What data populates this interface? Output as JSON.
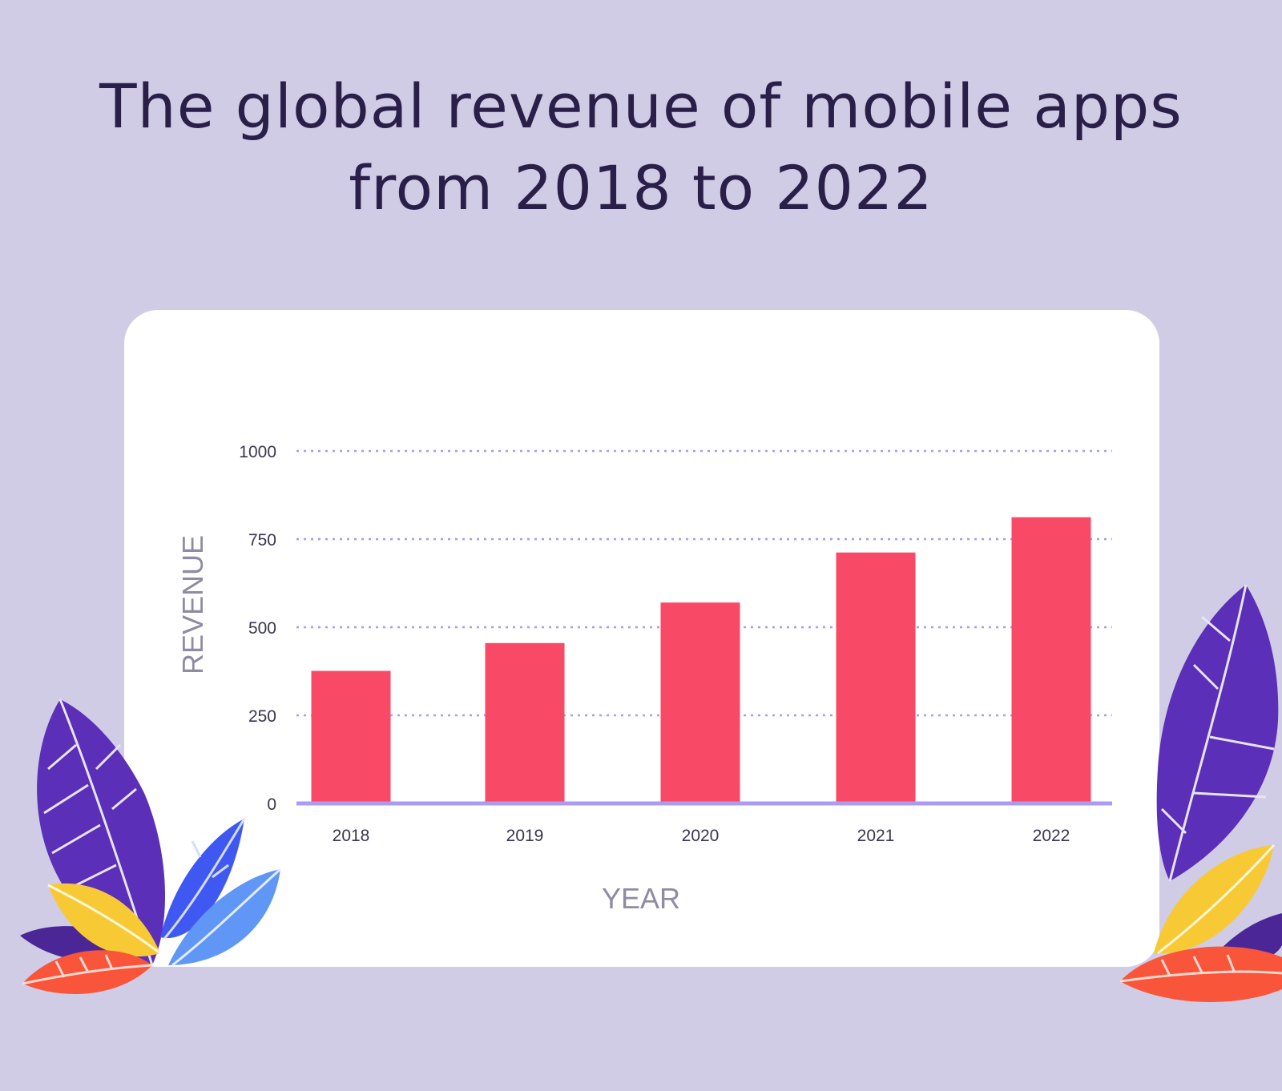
{
  "header": {
    "title_line1": "The global revenue of mobile apps",
    "title_line2": "from 2018 to 2022"
  },
  "colors": {
    "background": "#d0cce6",
    "card": "#ffffff",
    "bar": "#f84a67",
    "grid": "#a99af2",
    "baseline": "#ab9bf2",
    "title": "#2a1f48",
    "axis_title": "#8f8ba3"
  },
  "chart_data": {
    "type": "bar",
    "title": "The global revenue of mobile apps from 2018 to 2022",
    "xlabel": "YEAR",
    "ylabel": "REVENUE",
    "categories": [
      "2018",
      "2019",
      "2020",
      "2021",
      "2022"
    ],
    "values": [
      376,
      455,
      570,
      712,
      812
    ],
    "ylim": [
      0,
      1000
    ],
    "yticks": [
      0,
      250,
      500,
      750,
      1000
    ],
    "ytick_labels": [
      "0",
      "250",
      "500",
      "750",
      "1000"
    ],
    "grid": true,
    "grid_style": "dotted",
    "legend": null
  }
}
